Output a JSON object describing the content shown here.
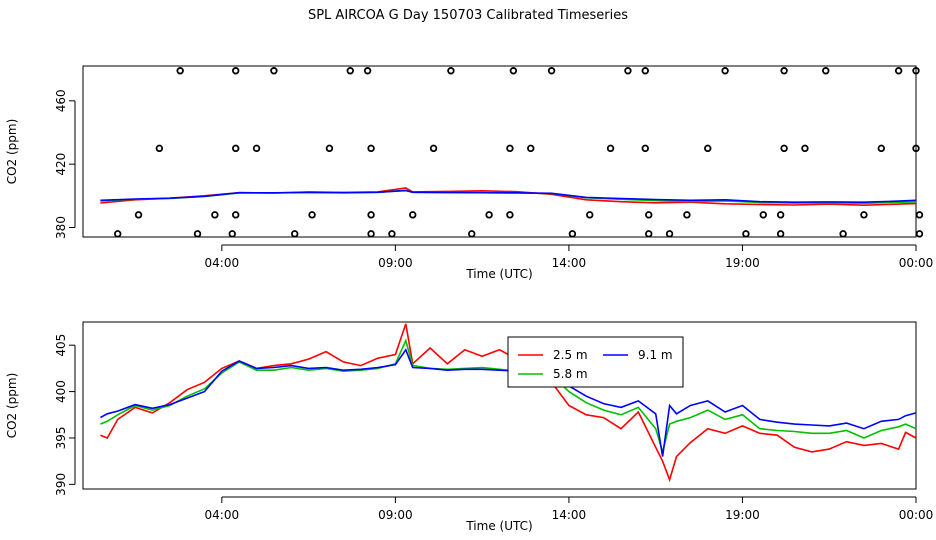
{
  "title": "SPL AIRCOA G  Day 150703  Calibrated Timeseries",
  "chart_data": [
    {
      "type": "scatter",
      "xlabel": "Time (UTC)",
      "ylabel": "CO2 (ppm)",
      "x_ticks": [
        "04:00",
        "09:00",
        "14:00",
        "19:00",
        "00:00"
      ],
      "y_ticks": [
        "380",
        "420",
        "460"
      ],
      "xlim": [
        -0.5,
        23.5
      ],
      "ylim": [
        374,
        482
      ],
      "points": [
        {
          "x": 0.5,
          "y": 376
        },
        {
          "x": 1.1,
          "y": 388
        },
        {
          "x": 1.7,
          "y": 430
        },
        {
          "x": 2.3,
          "y": 479
        },
        {
          "x": 2.8,
          "y": 376
        },
        {
          "x": 3.3,
          "y": 388
        },
        {
          "x": 3.8,
          "y": 376
        },
        {
          "x": 3.9,
          "y": 388
        },
        {
          "x": 3.9,
          "y": 430
        },
        {
          "x": 3.9,
          "y": 479
        },
        {
          "x": 4.5,
          "y": 430
        },
        {
          "x": 5.0,
          "y": 479
        },
        {
          "x": 5.6,
          "y": 376
        },
        {
          "x": 6.1,
          "y": 388
        },
        {
          "x": 6.6,
          "y": 430
        },
        {
          "x": 7.2,
          "y": 479
        },
        {
          "x": 7.7,
          "y": 479
        },
        {
          "x": 7.8,
          "y": 430
        },
        {
          "x": 7.8,
          "y": 388
        },
        {
          "x": 7.8,
          "y": 376
        },
        {
          "x": 8.4,
          "y": 376
        },
        {
          "x": 9.0,
          "y": 388
        },
        {
          "x": 9.6,
          "y": 430
        },
        {
          "x": 10.1,
          "y": 479
        },
        {
          "x": 10.7,
          "y": 376
        },
        {
          "x": 11.2,
          "y": 388
        },
        {
          "x": 11.8,
          "y": 388
        },
        {
          "x": 11.8,
          "y": 430
        },
        {
          "x": 11.9,
          "y": 479
        },
        {
          "x": 12.4,
          "y": 430
        },
        {
          "x": 13.0,
          "y": 479
        },
        {
          "x": 13.6,
          "y": 376
        },
        {
          "x": 14.1,
          "y": 388
        },
        {
          "x": 14.7,
          "y": 430
        },
        {
          "x": 15.2,
          "y": 479
        },
        {
          "x": 15.7,
          "y": 479
        },
        {
          "x": 15.7,
          "y": 430
        },
        {
          "x": 15.8,
          "y": 388
        },
        {
          "x": 15.8,
          "y": 376
        },
        {
          "x": 16.4,
          "y": 376
        },
        {
          "x": 16.9,
          "y": 388
        },
        {
          "x": 17.5,
          "y": 430
        },
        {
          "x": 18.0,
          "y": 479
        },
        {
          "x": 18.6,
          "y": 376
        },
        {
          "x": 19.1,
          "y": 388
        },
        {
          "x": 19.6,
          "y": 388
        },
        {
          "x": 19.6,
          "y": 376
        },
        {
          "x": 19.7,
          "y": 430
        },
        {
          "x": 19.7,
          "y": 479
        },
        {
          "x": 20.3,
          "y": 430
        },
        {
          "x": 20.9,
          "y": 479
        },
        {
          "x": 21.4,
          "y": 376
        },
        {
          "x": 22.0,
          "y": 388
        },
        {
          "x": 22.5,
          "y": 430
        },
        {
          "x": 23.0,
          "y": 479
        },
        {
          "x": 23.5,
          "y": 479
        },
        {
          "x": 23.5,
          "y": 430
        },
        {
          "x": 23.6,
          "y": 388
        },
        {
          "x": 23.6,
          "y": 376
        }
      ],
      "series": [
        {
          "name": "2.5 m",
          "color": "#ff0000",
          "x": [
            0,
            1,
            2,
            3,
            4,
            5,
            6,
            7,
            8,
            8.8,
            9,
            10,
            11,
            12,
            13,
            14,
            15,
            16,
            17,
            18,
            19,
            20,
            21,
            22,
            23,
            23.5
          ],
          "y": [
            395.5,
            397.5,
            398.5,
            400,
            402,
            401.8,
            402.5,
            402.2,
            402.5,
            405,
            402.5,
            402.8,
            403.2,
            402.6,
            401,
            397.5,
            396.3,
            395.6,
            396,
            395,
            394.5,
            394.2,
            394.8,
            394.1,
            394.8,
            395.1
          ]
        },
        {
          "name": "5.8 m",
          "color": "#00c000",
          "x": [
            0,
            1,
            2,
            3,
            4,
            5,
            6,
            7,
            8,
            8.8,
            9,
            10,
            11,
            12,
            13,
            14,
            15,
            16,
            17,
            18,
            19,
            20,
            21,
            22,
            23,
            23.5
          ],
          "y": [
            396.8,
            397.8,
            398.3,
            399.6,
            401.8,
            401.8,
            402.1,
            401.9,
            402.2,
            403.5,
            402.2,
            402.0,
            402.0,
            401.8,
            401.5,
            398.8,
            397.8,
            397.0,
            396.5,
            396.8,
            395.8,
            395.4,
            395.6,
            395.3,
            396.0,
            396.2
          ]
        },
        {
          "name": "9.1 m",
          "color": "#0000ff",
          "x": [
            0,
            1,
            2,
            3,
            4,
            5,
            6,
            7,
            8,
            8.8,
            9,
            10,
            11,
            12,
            13,
            14,
            15,
            16,
            17,
            18,
            19,
            20,
            21,
            22,
            23,
            23.5
          ],
          "y": [
            397.2,
            398.0,
            398.5,
            399.7,
            402.0,
            401.9,
            402.2,
            402.0,
            402.3,
            403.3,
            402.3,
            402.1,
            402.0,
            401.9,
            401.6,
            399.0,
            398.3,
            397.7,
            397.2,
            397.5,
            396.3,
            396.0,
            396.2,
            396.0,
            396.7,
            397.2
          ]
        }
      ]
    },
    {
      "type": "line",
      "xlabel": "Time (UTC)",
      "ylabel": "CO2 (ppm)",
      "x_ticks": [
        "04:00",
        "09:00",
        "14:00",
        "19:00",
        "00:00"
      ],
      "y_ticks": [
        "390",
        "395",
        "400",
        "405"
      ],
      "xlim": [
        -0.5,
        23.5
      ],
      "ylim": [
        389.5,
        407.5
      ],
      "legend": "top-center",
      "series": [
        {
          "name": "2.5 m",
          "color": "#ff0000",
          "x": [
            0,
            0.2,
            0.5,
            1,
            1.5,
            2,
            2.5,
            3,
            3.5,
            4,
            4.5,
            5,
            5.5,
            6,
            6.5,
            7,
            7.5,
            8,
            8.5,
            8.8,
            9,
            9.5,
            10,
            10.5,
            11,
            11.5,
            12,
            12.5,
            13,
            13.5,
            14,
            14.5,
            15,
            15.5,
            16,
            16.2,
            16.4,
            16.6,
            17,
            17.5,
            18,
            18.5,
            19,
            19.5,
            20,
            20.5,
            21,
            21.5,
            22,
            22.5,
            23,
            23.2,
            23.5
          ],
          "y": [
            395.3,
            395,
            397,
            398.3,
            397.7,
            398.8,
            400.2,
            401,
            402.5,
            403.3,
            402.5,
            402.8,
            403.0,
            403.5,
            404.3,
            403.2,
            402.8,
            403.6,
            404.0,
            407.3,
            403.0,
            404.7,
            403.0,
            404.5,
            403.8,
            404.5,
            403.5,
            403.0,
            401.0,
            398.5,
            397.5,
            397.2,
            396.0,
            397.8,
            394.0,
            392.5,
            390.5,
            393.0,
            394.5,
            396.0,
            395.5,
            396.3,
            395.5,
            395.3,
            394.0,
            393.5,
            393.8,
            394.6,
            394.2,
            394.4,
            393.8,
            395.6,
            395.0
          ]
        },
        {
          "name": "5.8 m",
          "color": "#00c000",
          "x": [
            0,
            0.2,
            0.5,
            1,
            1.5,
            2,
            2.5,
            3,
            3.5,
            4,
            4.5,
            5,
            5.5,
            6,
            6.5,
            7,
            7.5,
            8,
            8.5,
            8.8,
            9,
            9.5,
            10,
            10.5,
            11,
            11.5,
            12,
            12.5,
            13,
            13.5,
            14,
            14.5,
            15,
            15.5,
            16,
            16.2,
            16.4,
            16.6,
            17,
            17.5,
            18,
            18.5,
            19,
            19.5,
            20,
            20.5,
            21,
            21.5,
            22,
            22.5,
            23,
            23.2,
            23.5
          ],
          "y": [
            396.5,
            396.8,
            397.5,
            398.5,
            398.0,
            398.5,
            399.5,
            400.3,
            402.0,
            403.2,
            402.3,
            402.3,
            402.6,
            402.3,
            402.5,
            402.2,
            402.3,
            402.5,
            403.0,
            405.5,
            402.8,
            402.5,
            402.4,
            402.5,
            402.6,
            402.4,
            402.2,
            402.2,
            401.8,
            400.0,
            398.8,
            398.0,
            397.5,
            398.3,
            396.0,
            393.5,
            396.5,
            396.8,
            397.2,
            398.0,
            397.0,
            397.5,
            396.0,
            395.8,
            395.7,
            395.5,
            395.5,
            395.8,
            395.0,
            395.8,
            396.2,
            396.5,
            396.0
          ]
        },
        {
          "name": "9.1 m",
          "color": "#0000ff",
          "x": [
            0,
            0.2,
            0.5,
            1,
            1.5,
            2,
            2.5,
            3,
            3.5,
            4,
            4.5,
            5,
            5.5,
            6,
            6.5,
            7,
            7.5,
            8,
            8.5,
            8.8,
            9,
            9.5,
            10,
            10.5,
            11,
            11.5,
            12,
            12.5,
            13,
            13.5,
            14,
            14.5,
            15,
            15.5,
            16,
            16.2,
            16.4,
            16.6,
            17,
            17.5,
            18,
            18.5,
            19,
            19.5,
            20,
            20.5,
            21,
            21.5,
            22,
            22.5,
            23,
            23.2,
            23.5
          ],
          "y": [
            397.2,
            397.6,
            397.9,
            398.6,
            398.2,
            398.6,
            399.3,
            400.0,
            402.2,
            403.3,
            402.5,
            402.6,
            402.8,
            402.5,
            402.6,
            402.3,
            402.4,
            402.6,
            402.9,
            404.5,
            402.6,
            402.5,
            402.3,
            402.4,
            402.4,
            402.3,
            402.2,
            402.2,
            402.0,
            400.6,
            399.5,
            398.7,
            398.3,
            399.0,
            397.6,
            393.0,
            398.5,
            397.6,
            398.5,
            399.0,
            397.8,
            398.5,
            397.0,
            396.7,
            396.5,
            396.4,
            396.3,
            396.6,
            396.0,
            396.8,
            397.0,
            397.4,
            397.7
          ]
        }
      ]
    }
  ]
}
